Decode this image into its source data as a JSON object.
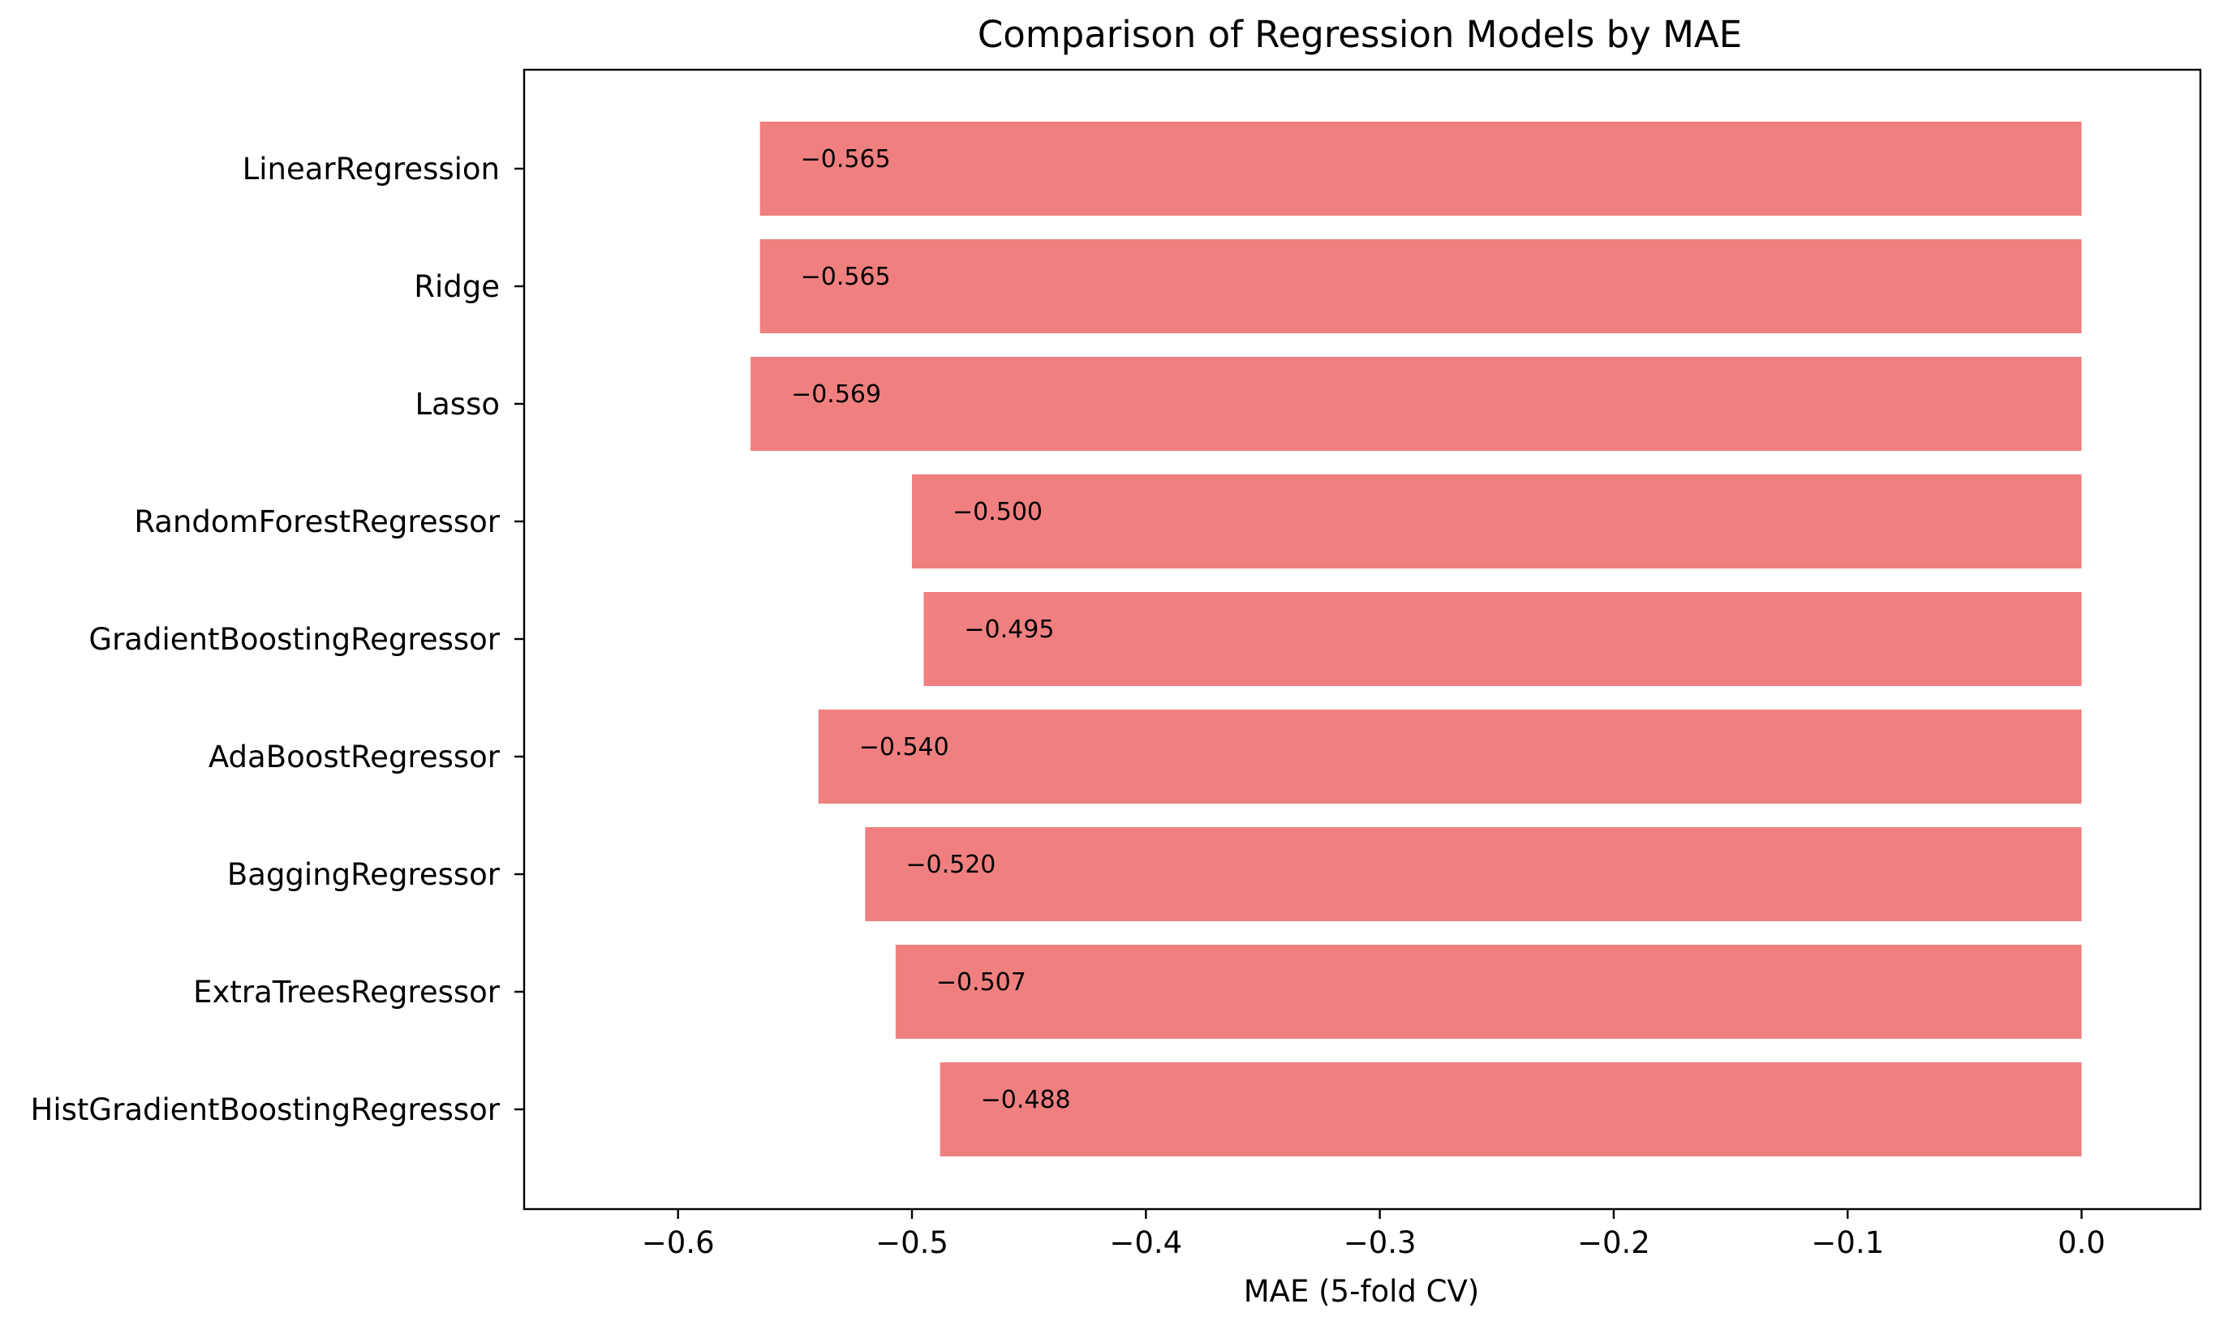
{
  "chart_data": {
    "type": "bar",
    "orientation": "horizontal",
    "title": "Comparison of Regression Models by MAE",
    "xlabel": "MAE (5-fold CV)",
    "ylabel": "",
    "categories": [
      "LinearRegression",
      "Ridge",
      "Lasso",
      "RandomForestRegressor",
      "GradientBoostingRegressor",
      "AdaBoostRegressor",
      "BaggingRegressor",
      "ExtraTreesRegressor",
      "HistGradientBoostingRegressor"
    ],
    "values": [
      -0.565,
      -0.565,
      -0.569,
      -0.5,
      -0.495,
      -0.54,
      -0.52,
      -0.507,
      -0.488
    ],
    "value_labels": [
      "−0.565",
      "−0.565",
      "−0.569",
      "−0.500",
      "−0.495",
      "−0.540",
      "−0.520",
      "−0.507",
      "−0.488"
    ],
    "xlim": [
      -0.6658,
      0.0508
    ],
    "xticks": [
      -0.6,
      -0.5,
      -0.4,
      -0.3,
      -0.2,
      -0.1,
      0.0
    ],
    "xtick_labels": [
      "−0.6",
      "−0.5",
      "−0.4",
      "−0.3",
      "−0.2",
      "−0.1",
      "0.0"
    ],
    "bar_color": "#F08080",
    "grid": false,
    "legend": "none"
  }
}
